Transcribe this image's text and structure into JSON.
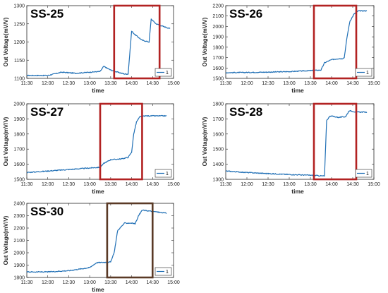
{
  "chart_data": [
    {
      "type": "line",
      "title": "SS-25",
      "xlabel": "time",
      "ylabel": "Out Voltage(mV/V)",
      "xlim": [
        "11:30",
        "15:00"
      ],
      "ylim": [
        1100,
        1300
      ],
      "x_ticks": [
        "11:30",
        "12:00",
        "12:30",
        "13:00",
        "13:30",
        "14:00",
        "14:30",
        "15:00"
      ],
      "y_ticks": [
        1100,
        1150,
        1200,
        1250,
        1300
      ],
      "legend": [
        "1"
      ],
      "legend_position": "bottom-right",
      "highlight_color": "#b22222",
      "highlight_x": [
        "13:35",
        "14:40"
      ],
      "series": [
        {
          "name": "1",
          "color": "#1f6fb5",
          "points": [
            [
              "11:30",
              1108
            ],
            [
              "12:00",
              1108
            ],
            [
              "12:20",
              1117
            ],
            [
              "12:40",
              1114
            ],
            [
              "13:00",
              1117
            ],
            [
              "13:15",
              1119
            ],
            [
              "13:20",
              1133
            ],
            [
              "13:30",
              1123
            ],
            [
              "13:40",
              1117
            ],
            [
              "13:50",
              1112
            ],
            [
              "13:55",
              1112
            ],
            [
              "14:00",
              1230
            ],
            [
              "14:05",
              1220
            ],
            [
              "14:15",
              1205
            ],
            [
              "14:25",
              1200
            ],
            [
              "14:28",
              1263
            ],
            [
              "14:35",
              1250
            ],
            [
              "14:45",
              1243
            ],
            [
              "14:55",
              1237
            ]
          ]
        }
      ]
    },
    {
      "type": "line",
      "title": "SS-26",
      "xlabel": "time",
      "ylabel": "Out Voltage(mV/V)",
      "xlim": [
        "11:30",
        "15:00"
      ],
      "ylim": [
        1500,
        2200
      ],
      "x_ticks": [
        "11:30",
        "12:00",
        "12:30",
        "13:00",
        "13:30",
        "14:00",
        "14:30",
        "15:00"
      ],
      "y_ticks": [
        1500,
        1600,
        1700,
        1800,
        1900,
        2000,
        2100,
        2200
      ],
      "legend": [
        "1"
      ],
      "legend_position": "bottom-right",
      "highlight_color": "#b22222",
      "highlight_x": [
        "13:35",
        "14:35"
      ],
      "series": [
        {
          "name": "1",
          "color": "#1f6fb5",
          "points": [
            [
              "11:30",
              1555
            ],
            [
              "12:00",
              1557
            ],
            [
              "12:30",
              1560
            ],
            [
              "13:00",
              1565
            ],
            [
              "13:30",
              1575
            ],
            [
              "13:45",
              1580
            ],
            [
              "13:50",
              1650
            ],
            [
              "14:00",
              1680
            ],
            [
              "14:10",
              1690
            ],
            [
              "14:15",
              1690
            ],
            [
              "14:18",
              1700
            ],
            [
              "14:22",
              1900
            ],
            [
              "14:26",
              2050
            ],
            [
              "14:32",
              2120
            ],
            [
              "14:38",
              2150
            ],
            [
              "14:50",
              2150
            ]
          ]
        }
      ]
    },
    {
      "type": "line",
      "title": "SS-27",
      "xlabel": "time",
      "ylabel": "Out Voltage(mV/V)",
      "xlim": [
        "11:30",
        "15:00"
      ],
      "ylim": [
        1500,
        2000
      ],
      "x_ticks": [
        "11:30",
        "12:00",
        "12:30",
        "13:00",
        "13:30",
        "14:00",
        "14:30",
        "15:00"
      ],
      "y_ticks": [
        1500,
        1600,
        1700,
        1800,
        1900,
        2000
      ],
      "legend": [
        "1"
      ],
      "legend_position": "bottom-right",
      "highlight_color": "#b22222",
      "highlight_x": [
        "13:15",
        "14:15"
      ],
      "series": [
        {
          "name": "1",
          "color": "#1f6fb5",
          "points": [
            [
              "11:30",
              1545
            ],
            [
              "12:00",
              1555
            ],
            [
              "12:30",
              1565
            ],
            [
              "13:00",
              1575
            ],
            [
              "13:15",
              1580
            ],
            [
              "13:20",
              1605
            ],
            [
              "13:30",
              1630
            ],
            [
              "13:45",
              1635
            ],
            [
              "13:55",
              1645
            ],
            [
              "14:00",
              1680
            ],
            [
              "14:03",
              1800
            ],
            [
              "14:07",
              1880
            ],
            [
              "14:12",
              1915
            ],
            [
              "14:20",
              1920
            ],
            [
              "14:50",
              1920
            ]
          ]
        }
      ]
    },
    {
      "type": "line",
      "title": "SS-28",
      "xlabel": "time",
      "ylabel": "Out Voltage(mV/V)",
      "xlim": [
        "11:30",
        "15:00"
      ],
      "ylim": [
        1300,
        1800
      ],
      "x_ticks": [
        "11:30",
        "12:00",
        "12:30",
        "13:00",
        "13:30",
        "14:00",
        "14:30",
        "15:00"
      ],
      "y_ticks": [
        1300,
        1400,
        1500,
        1600,
        1700,
        1800
      ],
      "legend": [
        "1"
      ],
      "legend_position": "bottom-right",
      "highlight_color": "#b22222",
      "highlight_x": [
        "13:35",
        "14:35"
      ],
      "series": [
        {
          "name": "1",
          "color": "#1f6fb5",
          "points": [
            [
              "11:30",
              1355
            ],
            [
              "12:00",
              1345
            ],
            [
              "12:30",
              1338
            ],
            [
              "13:00",
              1332
            ],
            [
              "13:30",
              1327
            ],
            [
              "13:50",
              1322
            ],
            [
              "13:53",
              1690
            ],
            [
              "13:58",
              1720
            ],
            [
              "14:10",
              1710
            ],
            [
              "14:20",
              1715
            ],
            [
              "14:25",
              1755
            ],
            [
              "14:35",
              1745
            ],
            [
              "14:50",
              1745
            ]
          ]
        }
      ]
    },
    {
      "type": "line",
      "title": "SS-30",
      "xlabel": "time",
      "ylabel": "Out Voltage(mV/V)",
      "xlim": [
        "11:30",
        "15:00"
      ],
      "ylim": [
        1800,
        2400
      ],
      "x_ticks": [
        "11:30",
        "12:00",
        "12:30",
        "13:00",
        "13:30",
        "14:00",
        "14:30",
        "15:00"
      ],
      "y_ticks": [
        1800,
        1900,
        2000,
        2100,
        2200,
        2300,
        2400
      ],
      "legend": [
        "1"
      ],
      "legend_position": "bottom-right",
      "highlight_color": "#5a3a26",
      "highlight_x": [
        "13:25",
        "14:30"
      ],
      "series": [
        {
          "name": "1",
          "color": "#1f6fb5",
          "points": [
            [
              "11:30",
              1845
            ],
            [
              "12:00",
              1845
            ],
            [
              "12:30",
              1855
            ],
            [
              "13:00",
              1880
            ],
            [
              "13:10",
              1920
            ],
            [
              "13:30",
              1925
            ],
            [
              "13:35",
              2000
            ],
            [
              "13:40",
              2180
            ],
            [
              "13:50",
              2240
            ],
            [
              "14:00",
              2240
            ],
            [
              "14:05",
              2235
            ],
            [
              "14:10",
              2300
            ],
            [
              "14:15",
              2345
            ],
            [
              "14:30",
              2335
            ],
            [
              "14:50",
              2320
            ]
          ]
        }
      ]
    }
  ]
}
